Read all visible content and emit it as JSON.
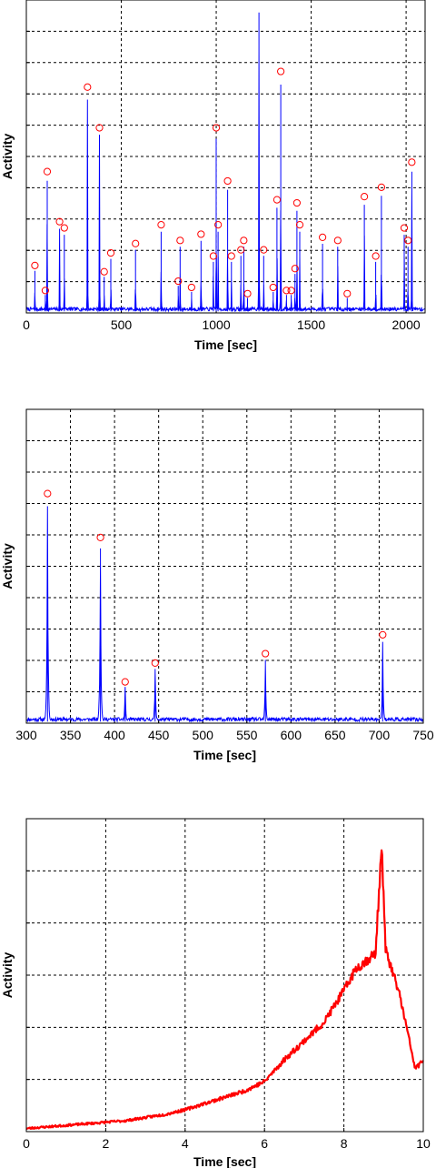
{
  "chart_data": [
    {
      "type": "line",
      "xlabel": "Time [sec]",
      "ylabel": "Activity",
      "xlim": [
        0,
        2100
      ],
      "xticks": [
        0,
        500,
        1000,
        1500,
        2000
      ],
      "y_gridlines": 10,
      "grid": true,
      "line_color": "#0000ff",
      "marker_color": "#ff0000",
      "marker": "circle",
      "peaks": {
        "x": [
          45,
          100,
          110,
          175,
          200,
          322,
          385,
          410,
          445,
          575,
          710,
          800,
          810,
          870,
          920,
          985,
          1000,
          1010,
          1060,
          1080,
          1130,
          1145,
          1165,
          1225,
          1250,
          1300,
          1320,
          1340,
          1370,
          1395,
          1415,
          1425,
          1440,
          1560,
          1640,
          1690,
          1780,
          1840,
          1870,
          1990,
          2010,
          2030
        ],
        "y": [
          0.14,
          0.06,
          0.44,
          0.28,
          0.26,
          0.71,
          0.58,
          0.12,
          0.18,
          0.21,
          0.27,
          0.09,
          0.22,
          0.07,
          0.24,
          0.17,
          0.58,
          0.27,
          0.41,
          0.17,
          0.19,
          0.22,
          0.05,
          1.0,
          0.19,
          0.07,
          0.35,
          0.76,
          0.06,
          0.06,
          0.13,
          0.34,
          0.27,
          0.23,
          0.22,
          0.05,
          0.36,
          0.17,
          0.39,
          0.26,
          0.22,
          0.47
        ]
      }
    },
    {
      "type": "line",
      "xlabel": "Time [sec]",
      "ylabel": "Activity",
      "xlim": [
        300,
        750
      ],
      "xticks": [
        300,
        350,
        400,
        450,
        500,
        550,
        600,
        650,
        700,
        750
      ],
      "y_gridlines": 10,
      "grid": true,
      "line_color": "#0000ff",
      "marker_color": "#ff0000",
      "marker": "circle",
      "peaks": {
        "x": [
          324,
          384,
          412,
          446,
          571,
          704
        ],
        "y": [
          0.72,
          0.58,
          0.12,
          0.18,
          0.21,
          0.27
        ]
      }
    },
    {
      "type": "line",
      "xlabel": "Time [sec]",
      "ylabel": "Activity",
      "xlim": [
        0,
        10
      ],
      "xticks": [
        0,
        2,
        4,
        6,
        8,
        10
      ],
      "y_gridlines": 6,
      "grid": true,
      "line_color": "#ff0000",
      "series": {
        "x": [
          0,
          0.5,
          1,
          1.5,
          2,
          2.5,
          3,
          3.5,
          4,
          4.5,
          5,
          5.5,
          6,
          6.5,
          7,
          7.5,
          8,
          8.3,
          8.6,
          8.8,
          8.95,
          9.05,
          9.2,
          9.4,
          9.6,
          9.8,
          10
        ],
        "y": [
          0.01,
          0.015,
          0.02,
          0.025,
          0.03,
          0.035,
          0.045,
          0.055,
          0.07,
          0.09,
          0.11,
          0.13,
          0.16,
          0.23,
          0.29,
          0.35,
          0.45,
          0.52,
          0.55,
          0.57,
          0.92,
          0.58,
          0.52,
          0.44,
          0.32,
          0.2,
          0.23
        ]
      }
    }
  ]
}
